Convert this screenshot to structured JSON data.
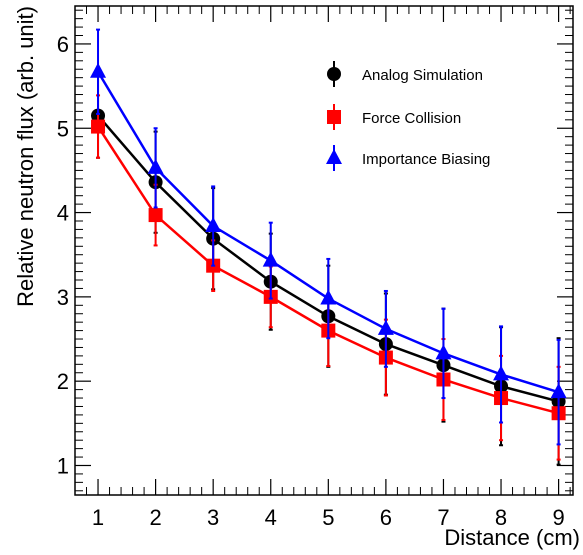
{
  "chart_data": {
    "type": "line",
    "xlabel": "Distance (cm)",
    "ylabel": "Relative neutron flux (arb. unit)",
    "xlim": [
      0.6,
      9.25
    ],
    "ylim": [
      0.65,
      6.45
    ],
    "x_ticks": [
      1,
      2,
      3,
      4,
      5,
      6,
      7,
      8,
      9
    ],
    "y_ticks": [
      1,
      2,
      3,
      4,
      5,
      6
    ],
    "grid": false,
    "legend_position": "top-right",
    "x": [
      1,
      2,
      3,
      4,
      5,
      6,
      7,
      8,
      9
    ],
    "series": [
      {
        "name": "Analog Simulation",
        "color": "#000000",
        "marker": "circle",
        "values": [
          5.15,
          4.36,
          3.69,
          3.18,
          2.77,
          2.44,
          2.19,
          1.94,
          1.76
        ],
        "errors": [
          0.5,
          0.6,
          0.6,
          0.57,
          0.6,
          0.6,
          0.67,
          0.7,
          0.75
        ]
      },
      {
        "name": "Force Collision",
        "color": "#ff0000",
        "marker": "square",
        "values": [
          5.02,
          3.97,
          3.37,
          3.0,
          2.6,
          2.28,
          2.02,
          1.8,
          1.62
        ],
        "errors": [
          0.37,
          0.36,
          0.3,
          0.36,
          0.42,
          0.45,
          0.48,
          0.5,
          0.55
        ]
      },
      {
        "name": "Importance Biasing",
        "color": "#0000ff",
        "marker": "triangle",
        "values": [
          5.67,
          4.53,
          3.84,
          3.43,
          2.98,
          2.62,
          2.33,
          2.08,
          1.87
        ],
        "errors": [
          0.5,
          0.47,
          0.47,
          0.45,
          0.47,
          0.45,
          0.53,
          0.57,
          0.62
        ]
      }
    ]
  }
}
